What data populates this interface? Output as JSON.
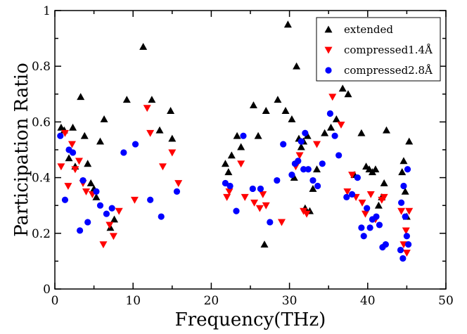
{
  "chart_data": {
    "type": "scatter",
    "xlabel": "Frequency(THz)",
    "ylabel": "Participation Ratio",
    "xlim": [
      0,
      50
    ],
    "ylim": [
      0,
      1
    ],
    "xticks": [
      0,
      10,
      20,
      30,
      40,
      50
    ],
    "yticks": [
      0,
      0.2,
      0.4,
      0.6,
      0.8,
      1
    ],
    "ytick_labels": [
      "0",
      "0.2",
      "0.4",
      "0.6",
      "0.8",
      "1"
    ],
    "grid": false,
    "legend_position": "top-right",
    "series": [
      {
        "name": "extended",
        "marker": "triangle-up",
        "color": "#000000",
        "x": [
          0.8,
          1.2,
          1.8,
          2.3,
          2.6,
          3.3,
          3.8,
          4.2,
          4.6,
          5.0,
          5.3,
          5.8,
          6.3,
          7.1,
          7.6,
          9.2,
          11.3,
          12.4,
          13.4,
          14.8,
          15.0,
          21.8,
          22.2,
          22.6,
          23.3,
          23.8,
          25.4,
          26.0,
          26.8,
          27.0,
          28.5,
          29.5,
          29.8,
          30.3,
          30.6,
          30.9,
          31.2,
          31.5,
          31.8,
          32.0,
          32.3,
          32.6,
          33.0,
          33.5,
          34.5,
          35.3,
          36.0,
          36.8,
          37.5,
          38.3,
          39.2,
          39.8,
          40.2,
          40.6,
          41.0,
          41.4,
          41.8,
          42.1,
          42.4,
          44.4,
          44.6,
          44.8,
          45.0,
          45.3
        ],
        "y": [
          0.58,
          0.57,
          0.47,
          0.58,
          0.44,
          0.69,
          0.55,
          0.45,
          0.38,
          0.36,
          0.33,
          0.53,
          0.61,
          0.22,
          0.25,
          0.68,
          0.87,
          0.68,
          0.57,
          0.64,
          0.54,
          0.45,
          0.42,
          0.48,
          0.55,
          0.51,
          0.66,
          0.55,
          0.16,
          0.64,
          0.68,
          0.64,
          0.95,
          0.61,
          0.4,
          0.8,
          0.54,
          0.51,
          0.53,
          0.29,
          0.55,
          0.28,
          0.36,
          0.43,
          0.56,
          0.58,
          0.61,
          0.72,
          0.7,
          0.41,
          0.56,
          0.44,
          0.43,
          0.42,
          0.43,
          0.3,
          0.33,
          0.38,
          0.57,
          0.42,
          0.46,
          0.35,
          0.26,
          0.53
        ],
        "labels": {
          "name": "extended"
        }
      },
      {
        "name": "compressed1.4Å",
        "marker": "triangle-down",
        "color": "#ff0000",
        "x": [
          0.8,
          1.3,
          1.7,
          2.2,
          2.6,
          3.1,
          3.6,
          4.0,
          4.8,
          6.2,
          7.0,
          7.5,
          8.2,
          10.2,
          11.8,
          12.2,
          13.8,
          15.0,
          15.8,
          22.0,
          22.3,
          23.8,
          24.3,
          25.5,
          26.2,
          26.6,
          27.0,
          29.0,
          30.8,
          31.3,
          31.8,
          32.2,
          33.5,
          35.5,
          36.6,
          37.4,
          38.0,
          38.5,
          39.3,
          39.7,
          40.4,
          41.0,
          41.8,
          42.1,
          44.3,
          44.6,
          44.9,
          45.0,
          45.3
        ],
        "y": [
          0.44,
          0.56,
          0.37,
          0.52,
          0.43,
          0.46,
          0.38,
          0.35,
          0.34,
          0.16,
          0.23,
          0.19,
          0.28,
          0.32,
          0.65,
          0.56,
          0.44,
          0.49,
          0.38,
          0.33,
          0.35,
          0.45,
          0.33,
          0.31,
          0.29,
          0.34,
          0.3,
          0.24,
          0.44,
          0.48,
          0.28,
          0.27,
          0.52,
          0.69,
          0.59,
          0.35,
          0.41,
          0.33,
          0.31,
          0.27,
          0.34,
          0.25,
          0.32,
          0.33,
          0.28,
          0.16,
          0.21,
          0.13,
          0.28
        ],
        "labels": {
          "name": "compressed1.4Å"
        }
      },
      {
        "name": "compressed2.8Å",
        "marker": "circle",
        "color": "#0000ff",
        "x": [
          0.7,
          1.3,
          1.8,
          2.3,
          3.2,
          3.6,
          4.2,
          5.3,
          5.8,
          6.6,
          7.3,
          8.8,
          10.3,
          12.2,
          13.6,
          15.6,
          21.8,
          22.4,
          23.2,
          24.1,
          25.3,
          26.3,
          27.5,
          28.4,
          29.2,
          30.3,
          30.7,
          31.1,
          31.5,
          31.8,
          32.0,
          32.4,
          33.0,
          33.6,
          34.2,
          35.2,
          35.8,
          36.3,
          37.3,
          38.0,
          38.7,
          39.2,
          39.5,
          39.9,
          40.3,
          40.6,
          41.1,
          41.5,
          41.9,
          42.3,
          44.2,
          44.3,
          44.5,
          44.6,
          44.8,
          45.0,
          45.1,
          45.2
        ],
        "y": [
          0.55,
          0.32,
          0.5,
          0.49,
          0.21,
          0.39,
          0.24,
          0.35,
          0.3,
          0.27,
          0.29,
          0.49,
          0.52,
          0.32,
          0.26,
          0.35,
          0.38,
          0.37,
          0.28,
          0.55,
          0.36,
          0.36,
          0.24,
          0.39,
          0.52,
          0.41,
          0.45,
          0.46,
          0.53,
          0.43,
          0.56,
          0.43,
          0.39,
          0.37,
          0.45,
          0.63,
          0.55,
          0.48,
          0.33,
          0.34,
          0.4,
          0.22,
          0.19,
          0.29,
          0.22,
          0.25,
          0.26,
          0.23,
          0.15,
          0.16,
          0.14,
          0.31,
          0.11,
          0.37,
          0.26,
          0.19,
          0.43,
          0.16
        ],
        "labels": {
          "name": "compressed2.8Å"
        }
      }
    ]
  }
}
